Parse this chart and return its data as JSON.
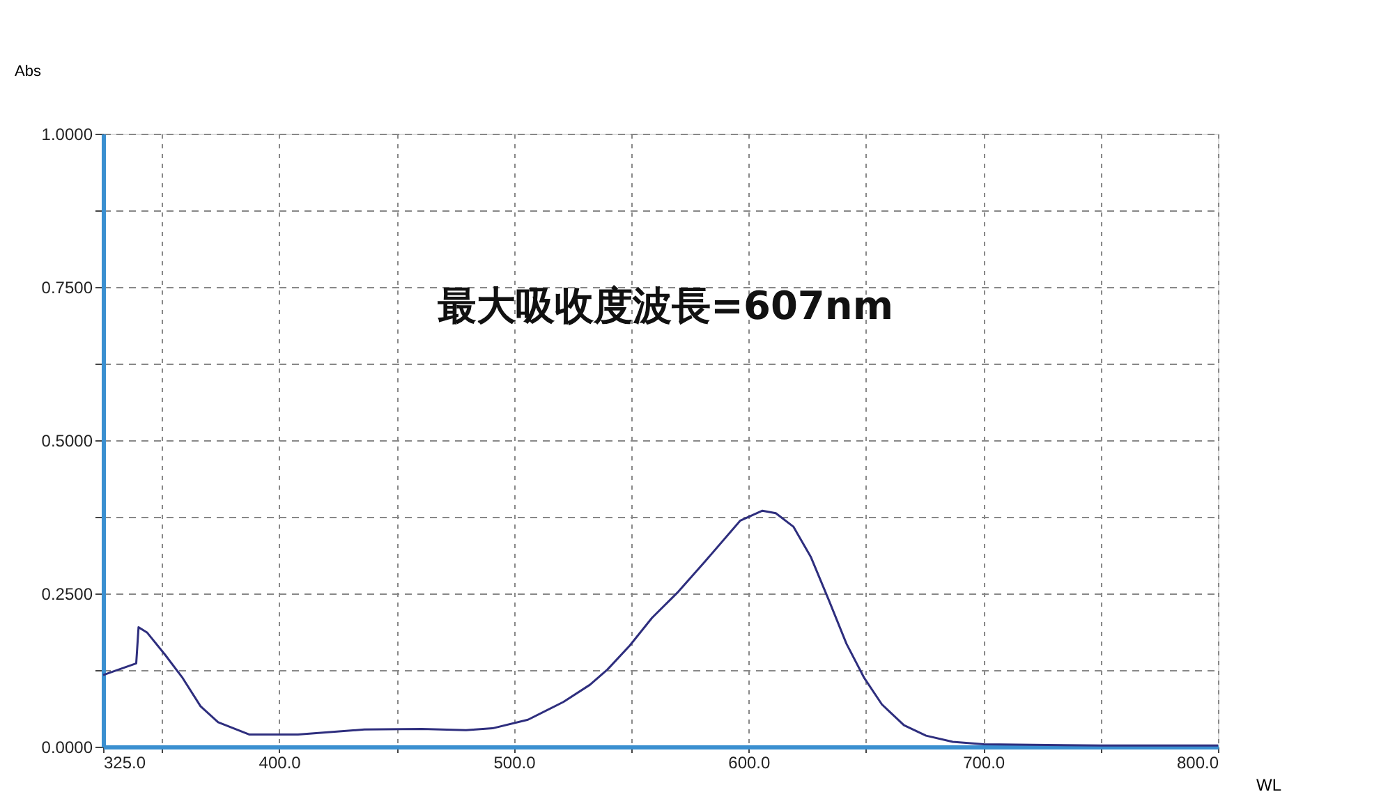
{
  "chart_data": {
    "type": "line",
    "xlabel": "WL",
    "ylabel": "Abs",
    "annotations": [
      "最大吸收度波長=607nm"
    ],
    "x": [
      325,
      339.1,
      340.1,
      343.8,
      351.4,
      358.9,
      366.5,
      374,
      387.2,
      408,
      436.3,
      460.7,
      479.6,
      490.9,
      506,
      521.1,
      532.4,
      539.9,
      549.4,
      558.8,
      570.1,
      581.4,
      596.5,
      605.9,
      611.6,
      619.1,
      626.6,
      634.2,
      641.7,
      649.3,
      656.8,
      666.2,
      675.6,
      687,
      700.2,
      750,
      800
    ],
    "series": [
      {
        "color": "#2e2e7e",
        "values": [
          0.117,
          0.136,
          0.195,
          0.186,
          0.15,
          0.112,
          0.066,
          0.04,
          0.02,
          0.02,
          0.028,
          0.029,
          0.027,
          0.03,
          0.044,
          0.073,
          0.101,
          0.126,
          0.165,
          0.21,
          0.253,
          0.302,
          0.369,
          0.385,
          0.381,
          0.359,
          0.309,
          0.239,
          0.168,
          0.112,
          0.069,
          0.035,
          0.018,
          0.008,
          0.004,
          0.002,
          0.002
        ]
      }
    ],
    "xlim": [
      325,
      800
    ],
    "xticks": [
      {
        "value": 325,
        "label": "325.0"
      },
      {
        "value": 350,
        "label": null
      },
      {
        "value": 400,
        "label": "400.0"
      },
      {
        "value": 450,
        "label": null
      },
      {
        "value": 500,
        "label": "500.0"
      },
      {
        "value": 550,
        "label": null
      },
      {
        "value": 600,
        "label": "600.0"
      },
      {
        "value": 650,
        "label": null
      },
      {
        "value": 700,
        "label": "700.0"
      },
      {
        "value": 750,
        "label": null
      },
      {
        "value": 800,
        "label": "800.0"
      }
    ],
    "ylim": [
      0,
      1.0
    ],
    "yticks": [
      {
        "value": 0,
        "label": "0.0000"
      },
      {
        "value": 0.125,
        "label": null
      },
      {
        "value": 0.25,
        "label": "0.2500"
      },
      {
        "value": 0.375,
        "label": null
      },
      {
        "value": 0.5,
        "label": "0.5000"
      },
      {
        "value": 0.625,
        "label": null
      },
      {
        "value": 0.75,
        "label": "0.7500"
      },
      {
        "value": 0.875,
        "label": null
      },
      {
        "value": 1.0,
        "label": "1.0000"
      }
    ],
    "grid": true,
    "legend": false,
    "marker": "none",
    "line_style": "solid"
  }
}
